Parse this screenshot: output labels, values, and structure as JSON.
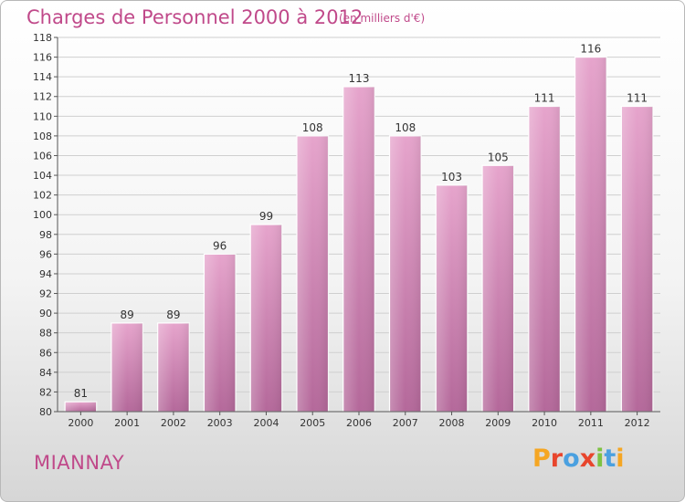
{
  "title": "Charges de Personnel 2000 à 2012",
  "subtitle": "(en milliers d'€)",
  "commune": "MIANNAY",
  "logo": {
    "text": "Proxiti"
  },
  "colors": {
    "bar": "#c8679e",
    "bar_light": "#e6a4cc",
    "accent": "#c0498a",
    "grid": "#cfcfcf"
  },
  "chart_data": {
    "type": "bar",
    "categories": [
      "2000",
      "2001",
      "2002",
      "2003",
      "2004",
      "2005",
      "2006",
      "2007",
      "2008",
      "2009",
      "2010",
      "2011",
      "2012"
    ],
    "values": [
      81,
      89,
      89,
      96,
      99,
      108,
      113,
      108,
      103,
      105,
      111,
      116,
      111
    ],
    "ylim": [
      80,
      118
    ],
    "yticks": [
      80,
      82,
      84,
      86,
      88,
      90,
      92,
      94,
      96,
      98,
      100,
      102,
      104,
      106,
      108,
      110,
      112,
      114,
      116,
      118
    ],
    "grid": true,
    "data_labels": true
  }
}
